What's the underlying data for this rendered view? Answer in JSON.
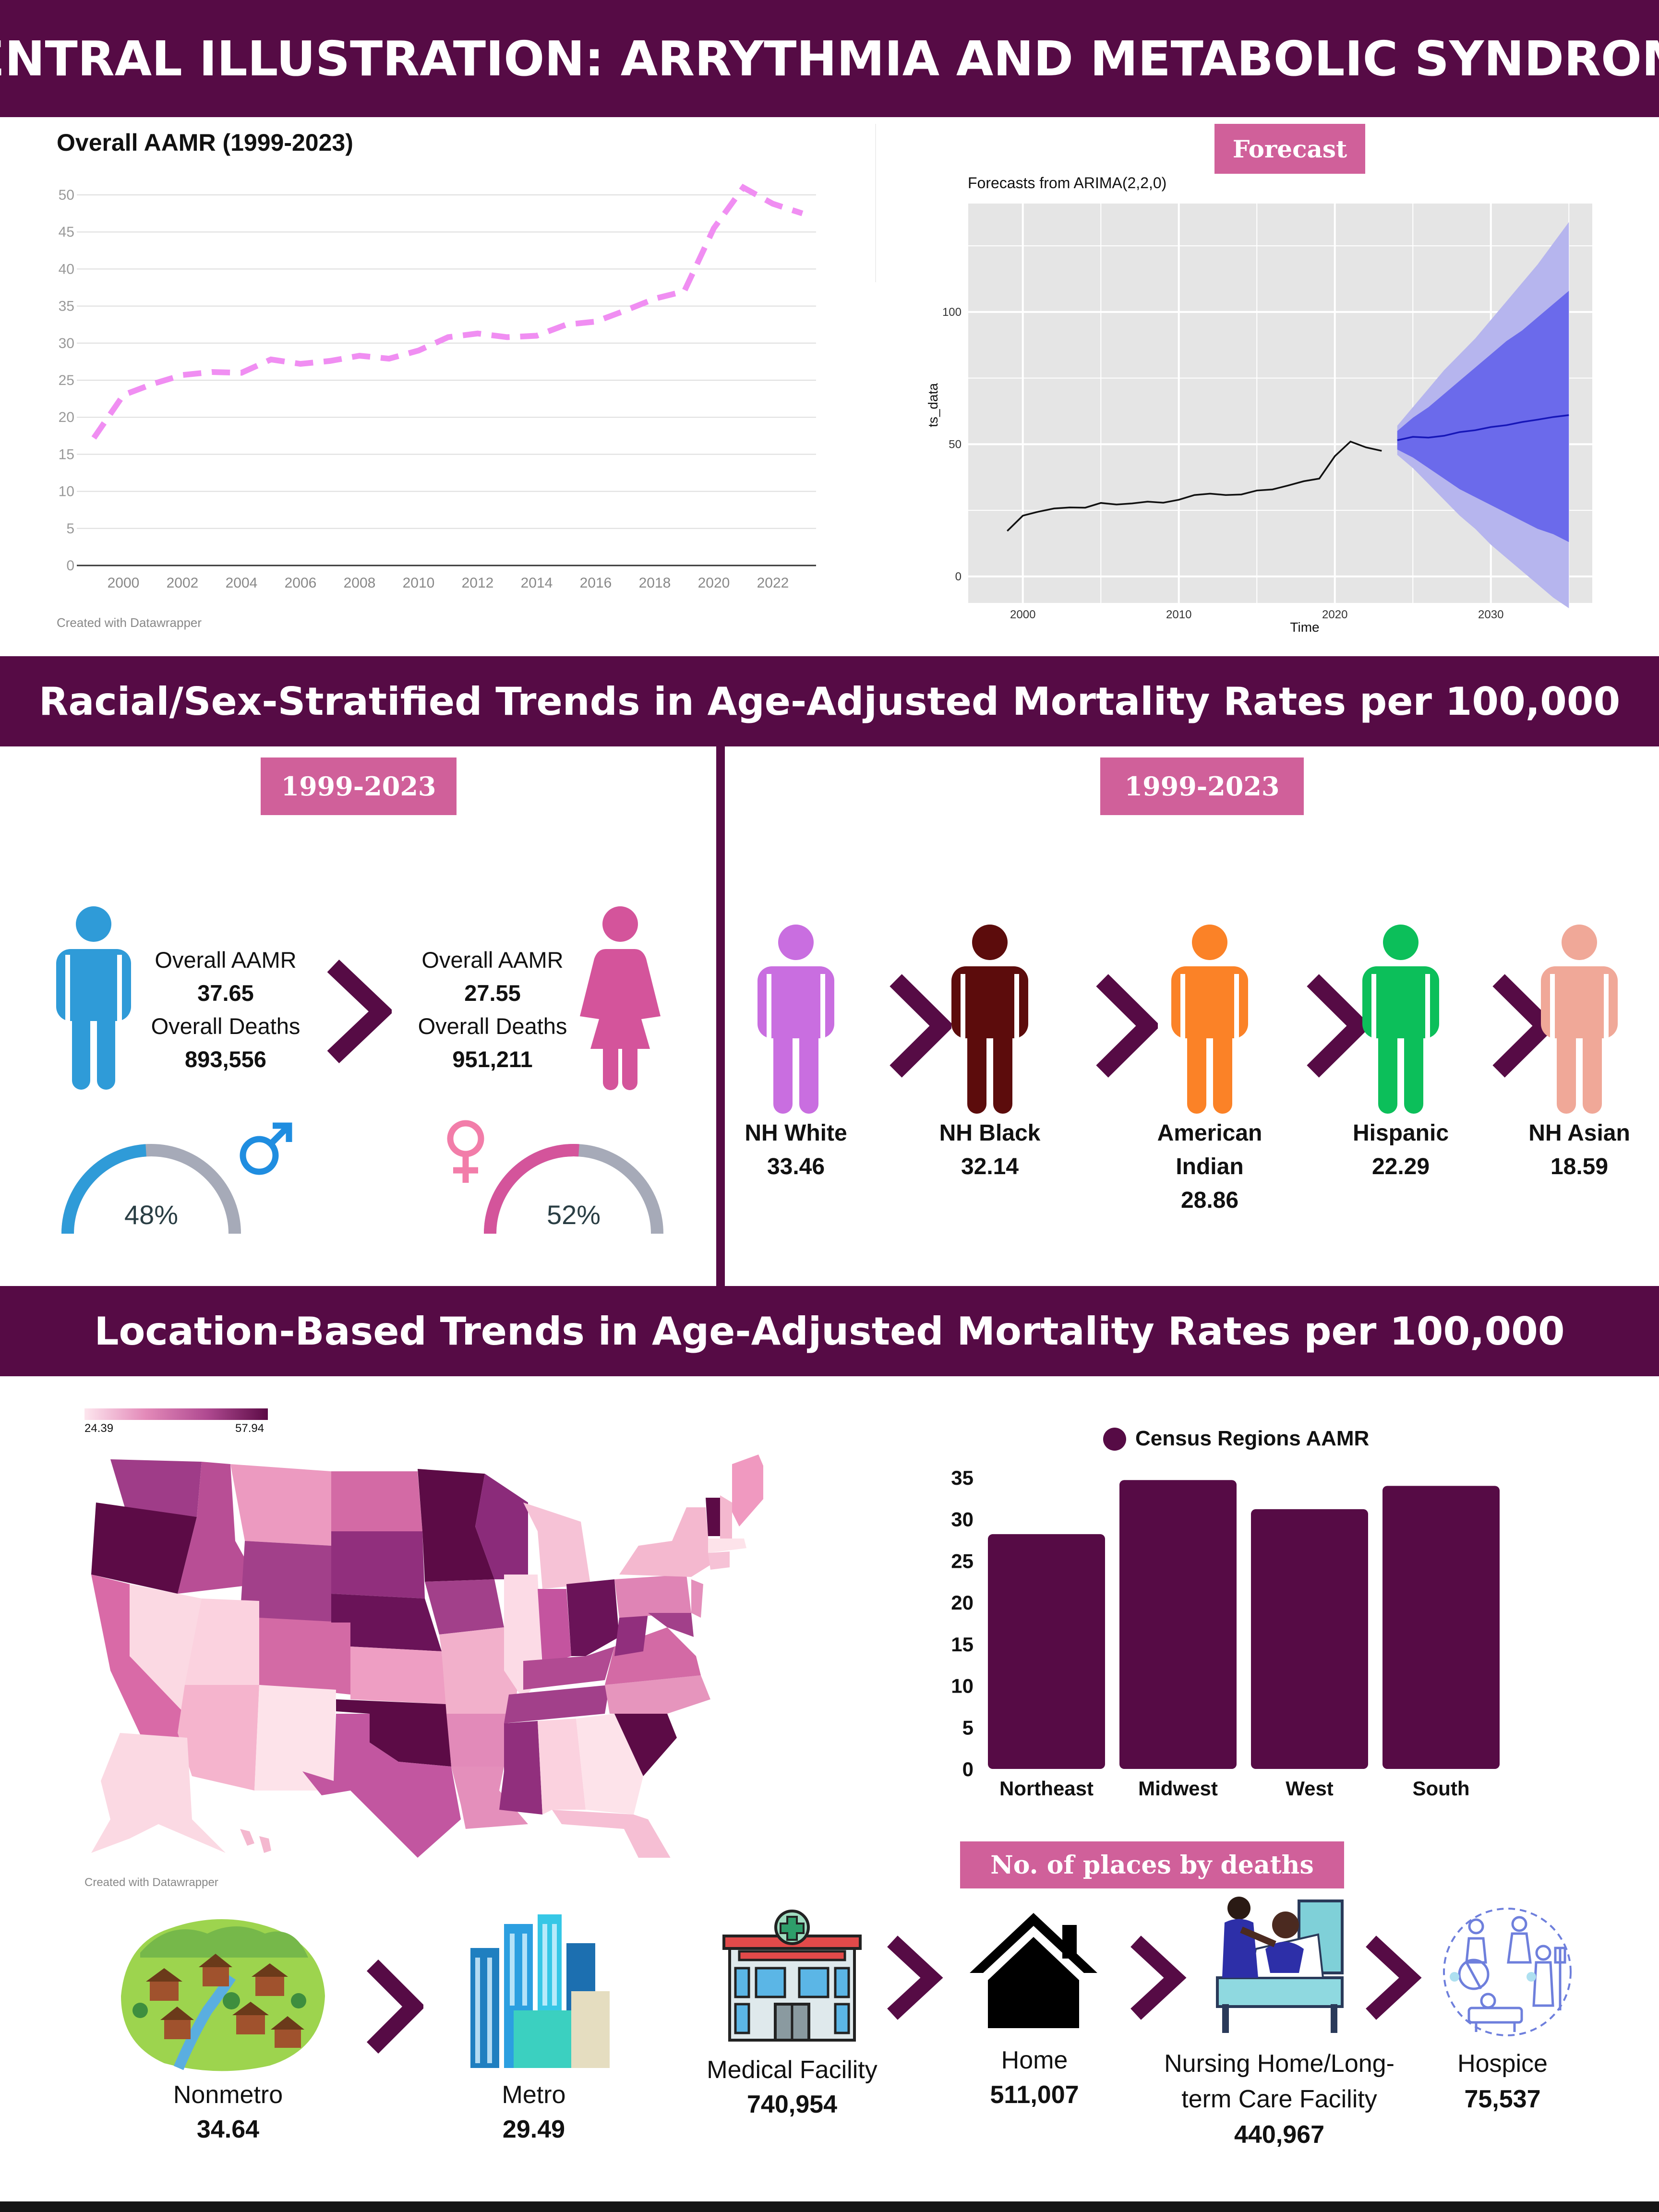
{
  "header": {
    "title": "CENTRAL ILLUSTRATION: ARRYTHMIA AND METABOLIC SYNDROME",
    "section2": "Racial/Sex-Stratified Trends in Age-Adjusted Mortality Rates per 100,000",
    "section3": "Location-Based Trends in Age-Adjusted Mortality Rates per 100,000"
  },
  "forecast_pill": "Forecast",
  "period_pill_left": "1999-2023",
  "period_pill_right": "1999-2023",
  "places_pill": "No. of places by deaths",
  "credits": {
    "line": "Created with Datawrapper",
    "map": "Created with Datawrapper"
  },
  "chart_data": [
    {
      "type": "line",
      "title": "Overall AAMR (1999-2023)",
      "x": [
        1999,
        2000,
        2001,
        2002,
        2003,
        2004,
        2005,
        2006,
        2007,
        2008,
        2009,
        2010,
        2011,
        2012,
        2013,
        2014,
        2015,
        2016,
        2017,
        2018,
        2019,
        2020,
        2021,
        2022,
        2023
      ],
      "values": [
        17.2,
        23.0,
        24.5,
        25.7,
        26.1,
        26.0,
        27.8,
        27.2,
        27.6,
        28.3,
        27.9,
        29.0,
        30.8,
        31.3,
        30.8,
        31.0,
        32.5,
        32.9,
        34.4,
        36.0,
        37.0,
        45.5,
        51.0,
        48.8,
        47.5
      ],
      "xticks": [
        "2000",
        "2002",
        "2004",
        "2006",
        "2008",
        "2010",
        "2012",
        "2014",
        "2016",
        "2018",
        "2020",
        "2022"
      ],
      "yticks": [
        "0",
        "5",
        "10",
        "15",
        "20",
        "25",
        "30",
        "35",
        "40",
        "45",
        "50"
      ],
      "ylim": [
        0,
        50
      ],
      "color": "#f08ef2"
    },
    {
      "type": "line",
      "title": "Forecasts from ARIMA(2,2,0)",
      "xlabel": "Time",
      "ylabel": "ts_data",
      "xticks": [
        "2000",
        "2010",
        "2020",
        "2030"
      ],
      "yticks": [
        "0",
        "50",
        "100"
      ],
      "xlim": [
        1996.5,
        2036.5
      ],
      "ylim": [
        -10,
        141
      ],
      "observed": [
        17.2,
        23.0,
        24.5,
        25.7,
        26.1,
        26.0,
        27.8,
        27.2,
        27.6,
        28.3,
        27.9,
        29.0,
        30.8,
        31.3,
        30.8,
        31.0,
        32.5,
        32.9,
        34.4,
        36.0,
        37.0,
        45.5,
        51.0,
        48.8,
        47.5
      ],
      "observed_x_start": 1999,
      "forecast_x": [
        2024,
        2025,
        2026,
        2027,
        2028,
        2029,
        2030,
        2031,
        2032,
        2033,
        2034,
        2035
      ],
      "forecast_mean": [
        51.5,
        52.8,
        52.5,
        53.2,
        54.6,
        55.3,
        56.5,
        57.2,
        58.4,
        59.3,
        60.3,
        61.0
      ],
      "lo80": [
        48,
        45,
        41,
        37,
        33,
        30,
        27,
        24,
        21,
        18,
        16,
        13
      ],
      "hi80": [
        55,
        60,
        64,
        69,
        74,
        79,
        84,
        89,
        93,
        98,
        103,
        108
      ],
      "lo95": [
        46,
        41,
        35,
        29,
        23,
        18,
        12,
        7,
        2,
        -3,
        -8,
        -12
      ],
      "hi95": [
        57,
        64,
        71,
        78,
        84,
        90,
        97,
        104,
        111,
        118,
        126,
        134
      ],
      "colors": {
        "band95": "#b6b5ee",
        "band80": "#6b6aeb",
        "mean": "#1616b8",
        "panel": "#e5e5e5"
      }
    },
    {
      "type": "bar",
      "title": "Census Regions AAMR",
      "categories": [
        "Northeast",
        "Midwest",
        "West",
        "South"
      ],
      "values": [
        28.2,
        34.7,
        31.2,
        34.0
      ],
      "yticks": [
        "0",
        "5",
        "10",
        "15",
        "20",
        "25",
        "30",
        "35"
      ],
      "ylim": [
        0,
        35
      ],
      "color": "#560b45"
    }
  ],
  "sex": {
    "male": {
      "label1": "Overall AAMR",
      "aamr": "37.65",
      "label2": "Overall Deaths",
      "deaths": "893,556",
      "percent": "48%",
      "fraction": 0.48,
      "color": "#2f9bd8"
    },
    "female": {
      "label1": "Overall AAMR",
      "aamr": "27.55",
      "label2": "Overall Deaths",
      "deaths": "951,211",
      "percent": "52%",
      "fraction": 0.52,
      "color": "#d4549b"
    }
  },
  "race": [
    {
      "name": "NH White",
      "value": "33.46",
      "color": "#c96ee0"
    },
    {
      "name": "NH Black",
      "value": "32.14",
      "color": "#5c0c0c"
    },
    {
      "name": "American Indian",
      "value": "28.86",
      "color": "#fb8227"
    },
    {
      "name": "Hispanic",
      "value": "22.29",
      "color": "#0cbf5a"
    },
    {
      "name": "NH Asian",
      "value": "18.59",
      "color": "#f0a898"
    }
  ],
  "map": {
    "legend_min": "24.39",
    "legend_max": "57.94"
  },
  "urbanization": {
    "nonmetro": {
      "name": "Nonmetro",
      "value": "34.64"
    },
    "metro": {
      "name": "Metro",
      "value": "29.49"
    }
  },
  "places": {
    "medical": {
      "name": "Medical Facility",
      "value": "740,954"
    },
    "home": {
      "name": "Home",
      "value": "511,007"
    },
    "nursing": {
      "name1": "Nursing Home/Long-",
      "name2": "term Care Facility",
      "value": "440,967"
    },
    "hospice": {
      "name": "Hospice",
      "value": "75,537"
    }
  }
}
